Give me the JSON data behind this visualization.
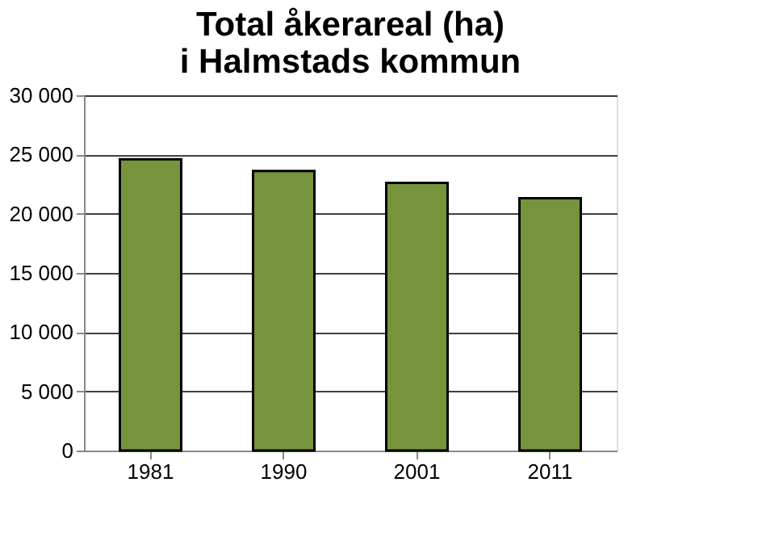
{
  "chart_data": {
    "type": "bar",
    "title": [
      "Total åkerareal (ha)",
      "i Halmstads kommun"
    ],
    "categories": [
      "1981",
      "1990",
      "2001",
      "2011"
    ],
    "values": [
      24600,
      23600,
      22600,
      21300
    ],
    "color": "#77933c",
    "ylim": [
      0,
      30000
    ],
    "yticks": [
      {
        "value": 0,
        "label": "0"
      },
      {
        "value": 5000,
        "label": "5 000"
      },
      {
        "value": 10000,
        "label": "10 000"
      },
      {
        "value": 15000,
        "label": "15 000"
      },
      {
        "value": 20000,
        "label": "20 000"
      },
      {
        "value": 25000,
        "label": "25 000"
      },
      {
        "value": 30000,
        "label": "30 000"
      }
    ],
    "grid": "y",
    "legend": false
  }
}
